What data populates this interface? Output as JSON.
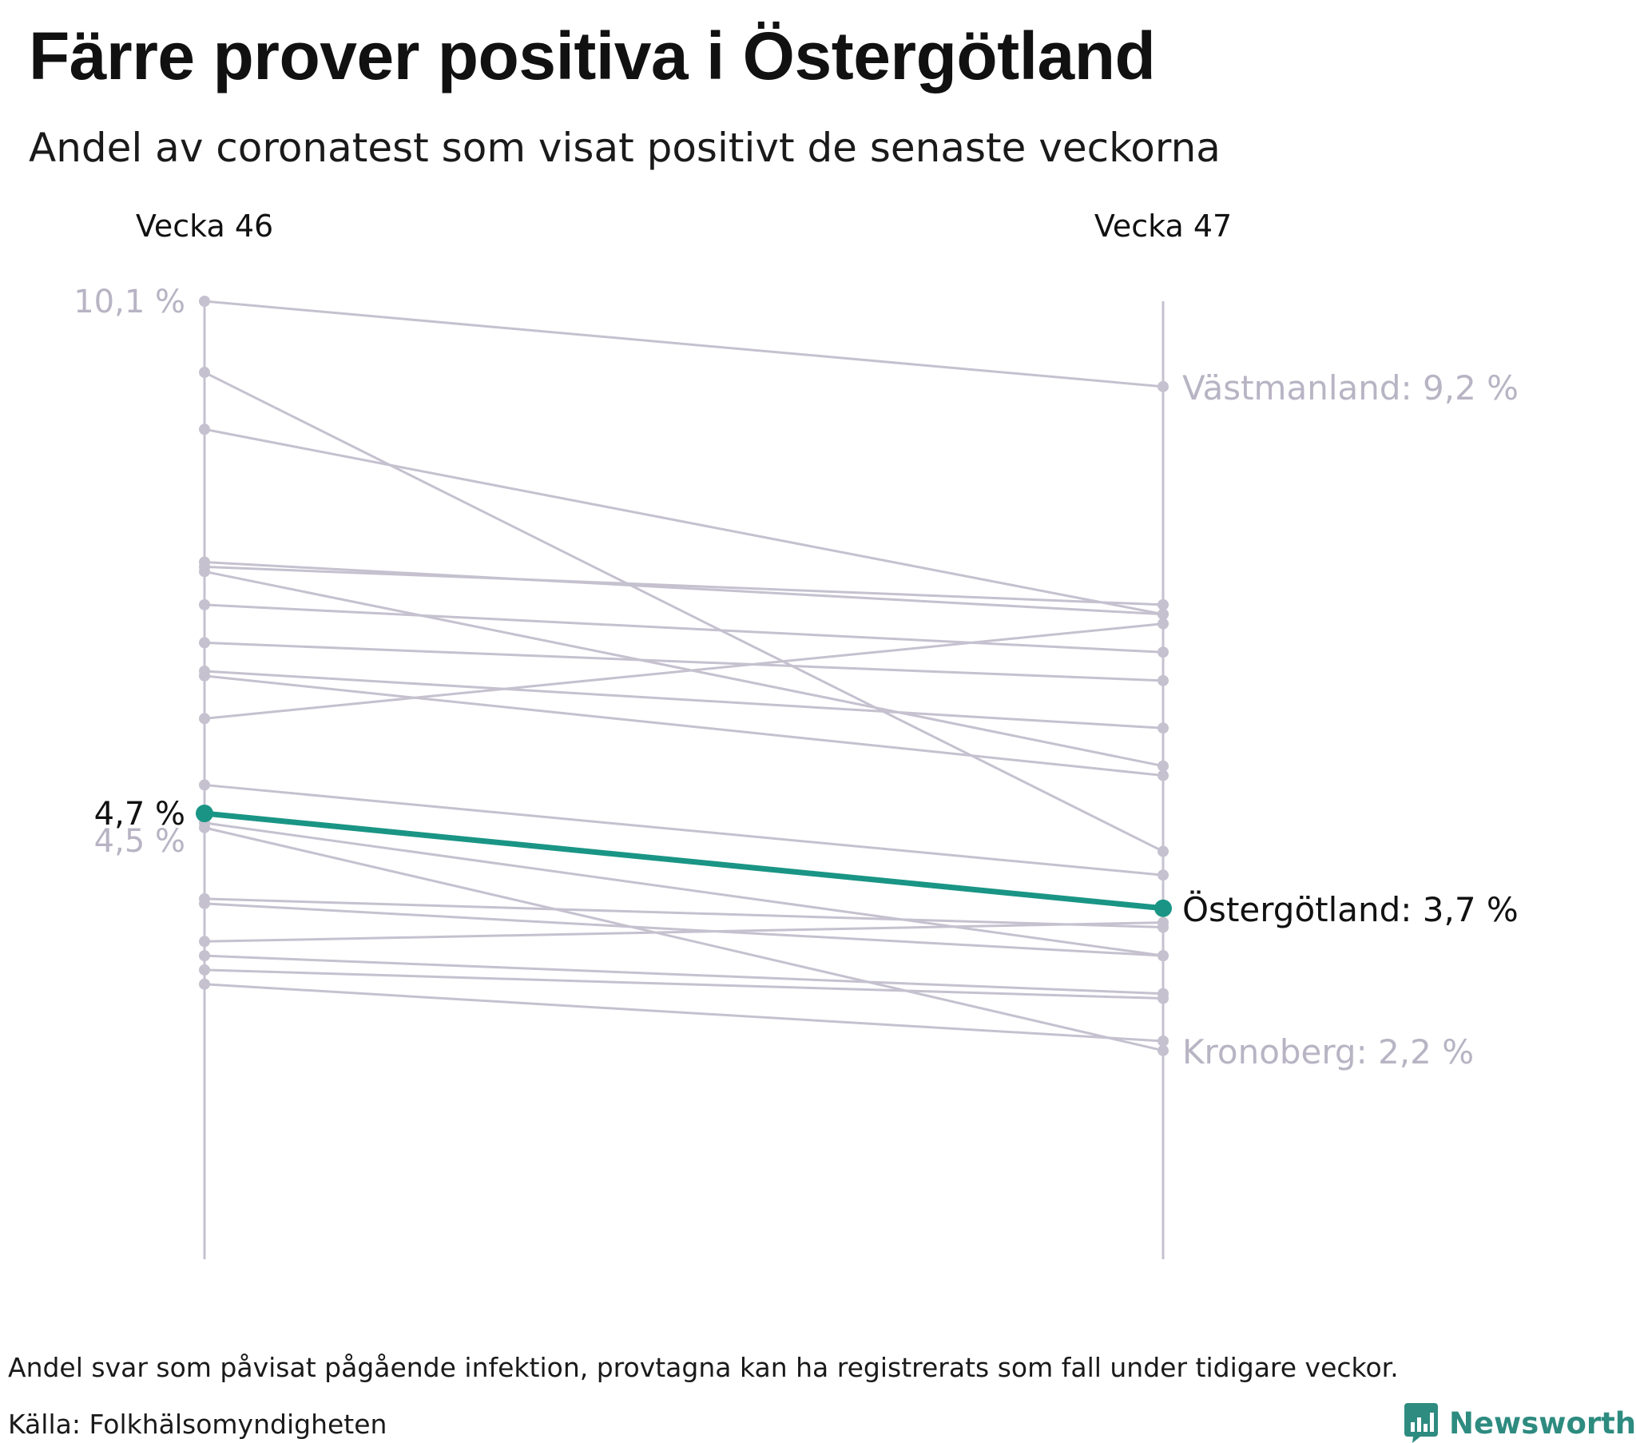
{
  "title": "Färre prover positiva i Östergötland",
  "subtitle": "Andel av coronatest som visat positivt de senaste veckorna",
  "footnote": "Andel svar som påvisat pågående infektion, provtagna kan ha registrerats som fall under tidigare veckor.",
  "source": "Källa: Folkhälsomyndigheten",
  "brand": {
    "name": "Newsworthy",
    "icon": "newsworthy-logo-icon"
  },
  "colors": {
    "grey": "#c5c1cf",
    "grey_text": "#b8b4c4",
    "highlight": "#1a9585",
    "text": "#111111"
  },
  "chart_data": {
    "type": "slope",
    "periods": [
      "Vecka 46",
      "Vecka 47"
    ],
    "unit": "%",
    "ylim": [
      0,
      10.1
    ],
    "top_label": "10,1 %",
    "overlapped_label": "4,5 %",
    "highlight": {
      "name": "Östergötland",
      "start": 4.7,
      "end": 3.7,
      "start_label": "4,7 %",
      "end_label": "Östergötland: 3,7 %"
    },
    "end_labels": [
      {
        "name": "Västmanland",
        "value": 9.2,
        "label": "Västmanland: 9,2 %"
      },
      {
        "name": "Kronoberg",
        "value": 2.2,
        "label": "Kronoberg: 2,2 %"
      }
    ],
    "series": [
      {
        "start": 10.1,
        "end": 9.2
      },
      {
        "start": 9.35,
        "end": 4.3
      },
      {
        "start": 8.75,
        "end": 6.8
      },
      {
        "start": 7.35,
        "end": 6.8
      },
      {
        "start": 7.3,
        "end": 6.9
      },
      {
        "start": 7.25,
        "end": 5.2
      },
      {
        "start": 6.9,
        "end": 6.4
      },
      {
        "start": 6.5,
        "end": 6.1
      },
      {
        "start": 6.2,
        "end": 5.6
      },
      {
        "start": 6.15,
        "end": 5.1
      },
      {
        "start": 5.7,
        "end": 6.7
      },
      {
        "start": 5.0,
        "end": 4.05
      },
      {
        "start": 4.6,
        "end": 3.2
      },
      {
        "start": 4.55,
        "end": 2.2
      },
      {
        "start": 3.8,
        "end": 3.5
      },
      {
        "start": 3.75,
        "end": 3.2
      },
      {
        "start": 3.35,
        "end": 3.55
      },
      {
        "start": 3.2,
        "end": 2.8
      },
      {
        "start": 3.05,
        "end": 2.75
      },
      {
        "start": 2.9,
        "end": 2.3
      }
    ]
  }
}
